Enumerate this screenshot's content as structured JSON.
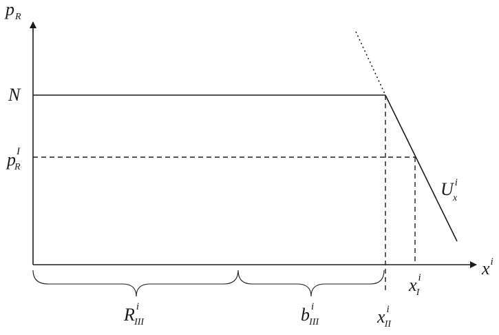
{
  "axes": {
    "y_label": {
      "main": "p",
      "sub": "R"
    },
    "x_label": {
      "main": "x",
      "sup": "i"
    }
  },
  "levels": {
    "N": "N",
    "pRI": {
      "main": "p",
      "sub": "R",
      "sup": "I"
    }
  },
  "curve_label": {
    "main": "U",
    "sub": "x",
    "sup": "i"
  },
  "points": {
    "xII": {
      "main": "x",
      "sub": "II",
      "sup": "i"
    },
    "xI": {
      "main": "x",
      "sub": "I",
      "sup": "i"
    }
  },
  "braces": [
    {
      "main": "R",
      "sub": "III",
      "sup": "i"
    },
    {
      "main": "b",
      "sub": "III",
      "sup": "i"
    }
  ]
}
